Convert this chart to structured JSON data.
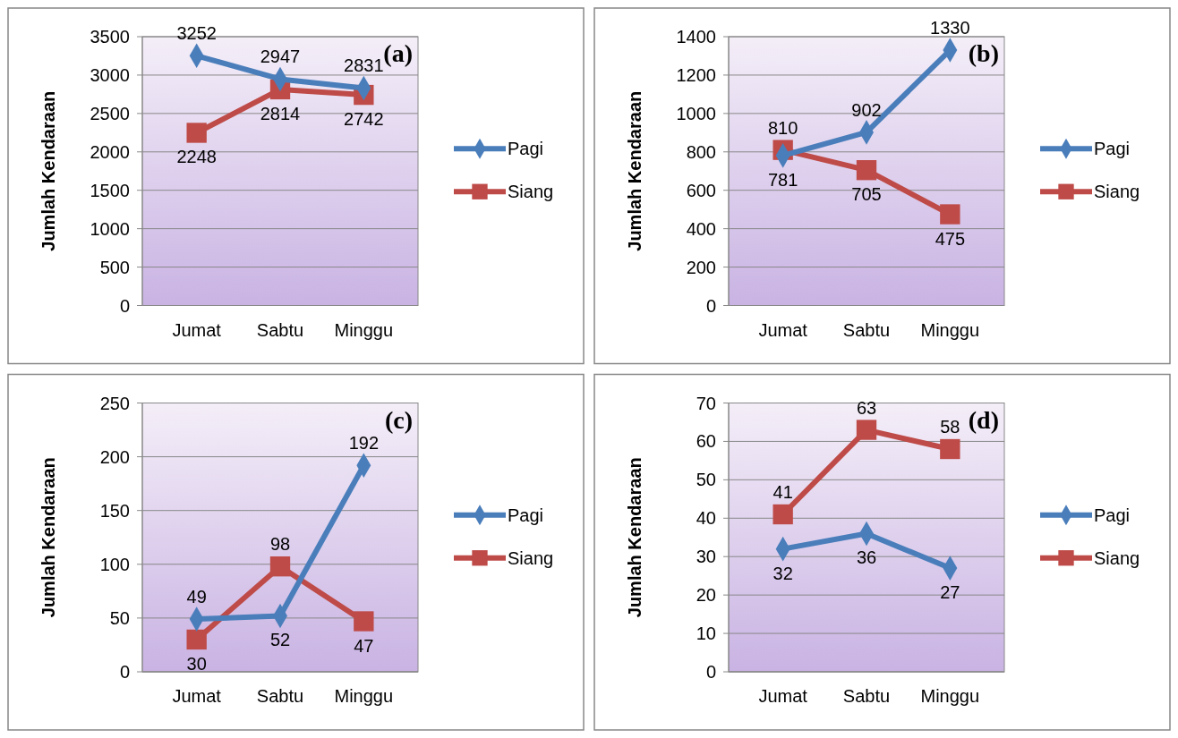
{
  "chart_data": [
    {
      "type": "line",
      "title": "(a)",
      "ylabel": "Jumlah Kendaraan",
      "categories": [
        "Jumat",
        "Sabtu",
        "Minggu"
      ],
      "ylim": [
        0,
        3500
      ],
      "yticks": [
        0,
        500,
        1000,
        1500,
        2000,
        2500,
        3000,
        3500
      ],
      "grid": "y",
      "legend": "right",
      "data_labels": true,
      "series": [
        {
          "name": "Pagi",
          "color": "#4a7ebb",
          "marker": "diamond",
          "values": [
            3252,
            2947,
            2831
          ]
        },
        {
          "name": "Siang",
          "color": "#be4b48",
          "marker": "square",
          "values": [
            2248,
            2814,
            2742
          ]
        }
      ]
    },
    {
      "type": "line",
      "title": "(b)",
      "ylabel": "Jumlah Kendaraan",
      "categories": [
        "Jumat",
        "Sabtu",
        "Minggu"
      ],
      "ylim": [
        0,
        1400
      ],
      "yticks": [
        0,
        200,
        400,
        600,
        800,
        1000,
        1200,
        1400
      ],
      "grid": "y",
      "legend": "right",
      "data_labels": true,
      "series": [
        {
          "name": "Pagi",
          "color": "#4a7ebb",
          "marker": "diamond",
          "values": [
            781,
            902,
            1330
          ]
        },
        {
          "name": "Siang",
          "color": "#be4b48",
          "marker": "square",
          "values": [
            810,
            705,
            475
          ]
        }
      ]
    },
    {
      "type": "line",
      "title": "(c)",
      "ylabel": "Jumlah Kendaraan",
      "categories": [
        "Jumat",
        "Sabtu",
        "Minggu"
      ],
      "ylim": [
        0,
        250
      ],
      "yticks": [
        0,
        50,
        100,
        150,
        200,
        250
      ],
      "grid": "y",
      "legend": "right",
      "data_labels": true,
      "series": [
        {
          "name": "Pagi",
          "color": "#4a7ebb",
          "marker": "diamond",
          "values": [
            49,
            52,
            192
          ]
        },
        {
          "name": "Siang",
          "color": "#be4b48",
          "marker": "square",
          "values": [
            30,
            98,
            47
          ]
        }
      ]
    },
    {
      "type": "line",
      "title": "(d)",
      "ylabel": "Jumlah Kendaraan",
      "categories": [
        "Jumat",
        "Sabtu",
        "Minggu"
      ],
      "ylim": [
        0,
        70
      ],
      "yticks": [
        0,
        10,
        20,
        30,
        40,
        50,
        60,
        70
      ],
      "grid": "y",
      "legend": "right",
      "data_labels": true,
      "series": [
        {
          "name": "Pagi",
          "color": "#4a7ebb",
          "marker": "diamond",
          "values": [
            32,
            36,
            27
          ]
        },
        {
          "name": "Siang",
          "color": "#be4b48",
          "marker": "square",
          "values": [
            41,
            63,
            58
          ]
        }
      ]
    }
  ]
}
